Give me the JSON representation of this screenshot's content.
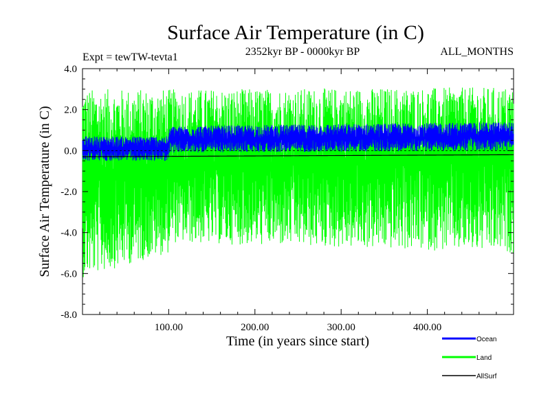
{
  "chart_data": {
    "type": "line",
    "title": "Surface Air Temperature (in C)",
    "subtitle_left": "Expt = tewTW-tevta1",
    "subtitle_center": "2352kyr BP - 0000kyr BP",
    "subtitle_right": "ALL_MONTHS",
    "xlabel": "Time (in years since start)",
    "ylabel": "Surface Air Temperature (in C)",
    "xlim": [
      0,
      500
    ],
    "ylim": [
      -8,
      4
    ],
    "x_ticks": [
      {
        "value": 100,
        "label": "100.00"
      },
      {
        "value": 200,
        "label": "200.00"
      },
      {
        "value": 300,
        "label": "300.00"
      },
      {
        "value": 400,
        "label": "400.00"
      }
    ],
    "y_ticks": [
      {
        "value": 4,
        "label": "4.0"
      },
      {
        "value": 2,
        "label": "2.0"
      },
      {
        "value": 0,
        "label": "0.0"
      },
      {
        "value": -2,
        "label": "-2.0"
      },
      {
        "value": -4,
        "label": "-4.0"
      },
      {
        "value": -6,
        "label": "-6.0"
      },
      {
        "value": -8,
        "label": "-8.0"
      }
    ],
    "zero_line": true,
    "series": [
      {
        "name": "Land",
        "color": "#00ff00",
        "style": "noisy band",
        "mean_by_year": [
          [
            0,
            -1.2
          ],
          [
            100,
            -1.2
          ],
          [
            101,
            -0.8
          ],
          [
            300,
            -0.6
          ],
          [
            500,
            -0.5
          ]
        ],
        "range_by_year": [
          [
            0,
            [
              -6.2,
              3.0
            ]
          ],
          [
            100,
            [
              -5.0,
              3.0
            ]
          ],
          [
            101,
            [
              -4.5,
              3.0
            ]
          ],
          [
            500,
            [
              -5.0,
              3.1
            ]
          ]
        ]
      },
      {
        "name": "Ocean",
        "color": "#0000ff",
        "style": "noisy band",
        "mean_by_year": [
          [
            0,
            0.1
          ],
          [
            100,
            0.1
          ],
          [
            101,
            0.5
          ],
          [
            300,
            0.6
          ],
          [
            500,
            0.7
          ]
        ],
        "range_by_year": [
          [
            0,
            [
              -0.5,
              0.7
            ]
          ],
          [
            100,
            [
              -0.5,
              0.7
            ]
          ],
          [
            101,
            [
              -0.1,
              1.2
            ]
          ],
          [
            500,
            [
              0.0,
              1.4
            ]
          ]
        ]
      },
      {
        "name": "AllSurf",
        "color": "#000000",
        "style": "line",
        "mean_by_year": [
          [
            0,
            -0.3
          ],
          [
            500,
            -0.2
          ]
        ],
        "range_by_year": [
          [
            0,
            [
              -0.8,
              0.2
            ]
          ],
          [
            500,
            [
              -0.7,
              0.3
            ]
          ]
        ]
      }
    ],
    "legend": [
      {
        "label": "Ocean",
        "color": "#0000ff"
      },
      {
        "label": "Land",
        "color": "#00ff00"
      },
      {
        "label": "AllSurf",
        "color": "#000000"
      }
    ],
    "legend_position": "bottom-right, outside plot"
  }
}
